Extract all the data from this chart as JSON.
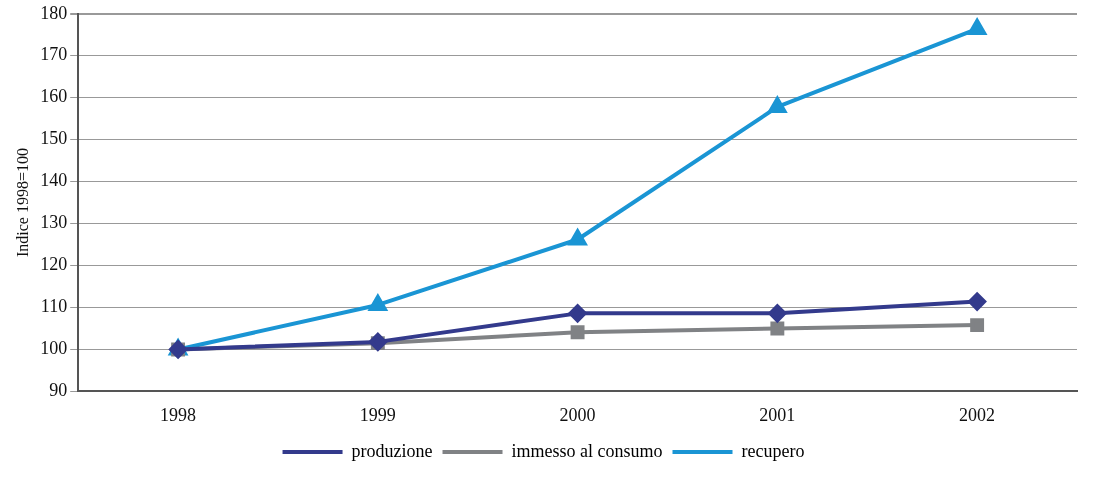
{
  "chart_data": {
    "type": "line",
    "ylabel": "Indice 1998=100",
    "categories": [
      "1998",
      "1999",
      "2000",
      "2001",
      "2002"
    ],
    "series": [
      {
        "name": "produzione",
        "color": "#333a8c",
        "marker": "diamond",
        "values": [
          100,
          101.8,
          108.6,
          108.6,
          111.4
        ]
      },
      {
        "name": "immesso al consumo",
        "color": "#808285",
        "marker": "square",
        "values": [
          100,
          101.5,
          104.1,
          105,
          105.8
        ]
      },
      {
        "name": "recupero",
        "color": "#1a95d4",
        "marker": "triangle",
        "values": [
          100,
          110.6,
          126.2,
          157.8,
          176.4
        ]
      }
    ],
    "ylim": [
      90,
      180
    ],
    "yticks": [
      90,
      100,
      110,
      120,
      130,
      140,
      150,
      160,
      170,
      180
    ],
    "grid": "y",
    "legend": "bottom",
    "line_style": "solid"
  }
}
